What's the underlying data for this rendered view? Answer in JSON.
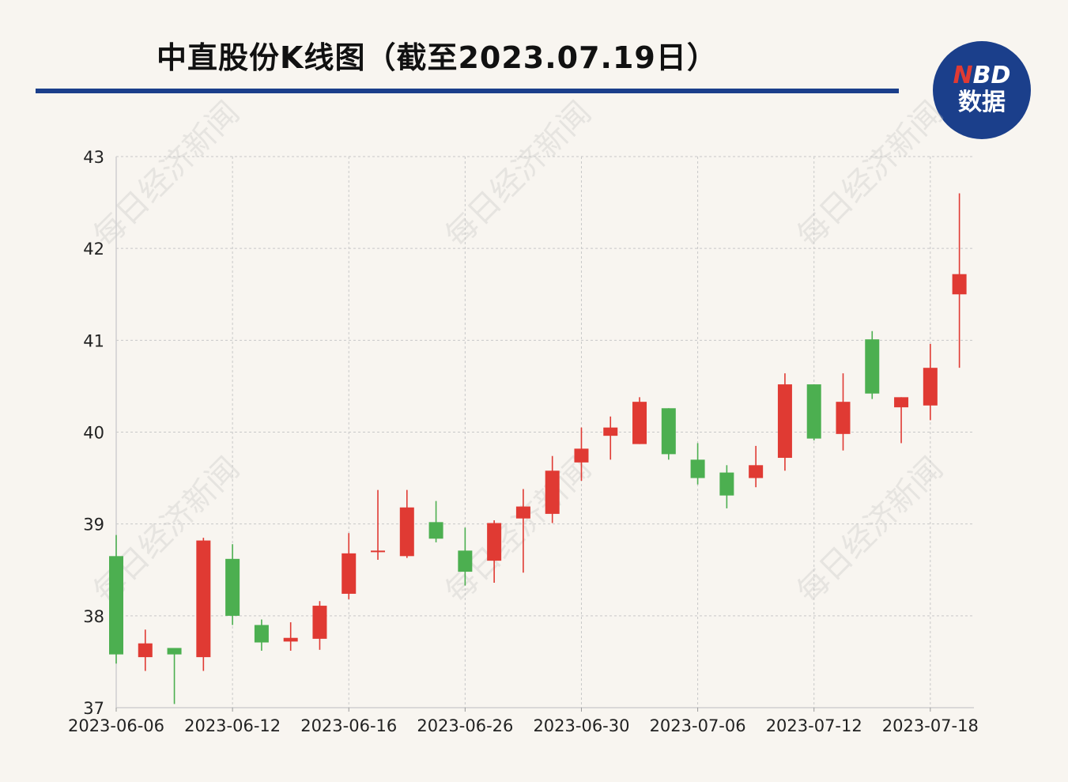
{
  "title": "中直股份K线图（截至2023.07.19日）",
  "logo": {
    "n": "N",
    "bd": "BD",
    "bottom": "数据"
  },
  "watermark": "每日经济新闻",
  "colors": {
    "up": "#e03a33",
    "down": "#4caf50",
    "accent": "#1b3f8b"
  },
  "chart_data": {
    "type": "candlestick",
    "y_ticks": [
      37,
      38,
      39,
      40,
      41,
      42,
      43
    ],
    "ylim": [
      37,
      43
    ],
    "x_tick_labels": [
      "2023-06-06",
      "2023-06-12",
      "2023-06-16",
      "2023-06-26",
      "2023-06-30",
      "2023-07-06",
      "2023-07-12",
      "2023-07-18"
    ],
    "grid": true,
    "candles": [
      {
        "date": "2023-06-06",
        "open": 38.65,
        "close": 37.58,
        "high": 38.88,
        "low": 37.48
      },
      {
        "open": 37.55,
        "close": 37.7,
        "high": 37.85,
        "low": 37.4
      },
      {
        "open": 37.65,
        "close": 37.58,
        "high": 37.65,
        "low": 37.04
      },
      {
        "open": 37.55,
        "close": 38.82,
        "high": 38.85,
        "low": 37.4
      },
      {
        "date": "2023-06-12",
        "open": 38.62,
        "close": 38.0,
        "high": 38.78,
        "low": 37.9
      },
      {
        "open": 37.9,
        "close": 37.71,
        "high": 37.96,
        "low": 37.62
      },
      {
        "open": 37.72,
        "close": 37.76,
        "high": 37.93,
        "low": 37.62
      },
      {
        "open": 37.75,
        "close": 38.11,
        "high": 38.16,
        "low": 37.63
      },
      {
        "date": "2023-06-16",
        "open": 38.24,
        "close": 38.68,
        "high": 38.9,
        "low": 38.18
      },
      {
        "open": 38.7,
        "close": 38.71,
        "high": 39.37,
        "low": 38.61
      },
      {
        "open": 38.65,
        "close": 39.18,
        "high": 39.37,
        "low": 38.63
      },
      {
        "open": 39.02,
        "close": 38.84,
        "high": 39.25,
        "low": 38.8
      },
      {
        "date": "2023-06-26",
        "open": 38.71,
        "close": 38.48,
        "high": 38.96,
        "low": 38.33
      },
      {
        "open": 38.6,
        "close": 39.01,
        "high": 39.04,
        "low": 38.36
      },
      {
        "open": 39.06,
        "close": 39.19,
        "high": 39.38,
        "low": 38.47
      },
      {
        "open": 39.11,
        "close": 39.58,
        "high": 39.74,
        "low": 39.01
      },
      {
        "date": "2023-06-30",
        "open": 39.67,
        "close": 39.82,
        "high": 40.05,
        "low": 39.47
      },
      {
        "open": 39.96,
        "close": 40.05,
        "high": 40.17,
        "low": 39.7
      },
      {
        "open": 39.87,
        "close": 40.33,
        "high": 40.38,
        "low": 39.87
      },
      {
        "open": 40.26,
        "close": 39.76,
        "high": 40.26,
        "low": 39.7
      },
      {
        "date": "2023-07-06",
        "open": 39.7,
        "close": 39.5,
        "high": 39.88,
        "low": 39.43
      },
      {
        "open": 39.56,
        "close": 39.31,
        "high": 39.64,
        "low": 39.17
      },
      {
        "open": 39.5,
        "close": 39.64,
        "high": 39.85,
        "low": 39.4
      },
      {
        "open": 39.72,
        "close": 40.52,
        "high": 40.64,
        "low": 39.58
      },
      {
        "date": "2023-07-12",
        "open": 40.52,
        "close": 39.93,
        "high": 40.52,
        "low": 39.91
      },
      {
        "open": 39.98,
        "close": 40.33,
        "high": 40.64,
        "low": 39.8
      },
      {
        "open": 41.01,
        "close": 40.42,
        "high": 41.1,
        "low": 40.36
      },
      {
        "open": 40.27,
        "close": 40.38,
        "high": 40.38,
        "low": 39.88
      },
      {
        "date": "2023-07-18",
        "open": 40.29,
        "close": 40.7,
        "high": 40.96,
        "low": 40.13
      },
      {
        "date": "2023-07-19",
        "open": 41.5,
        "close": 41.72,
        "high": 42.6,
        "low": 40.7
      }
    ]
  }
}
